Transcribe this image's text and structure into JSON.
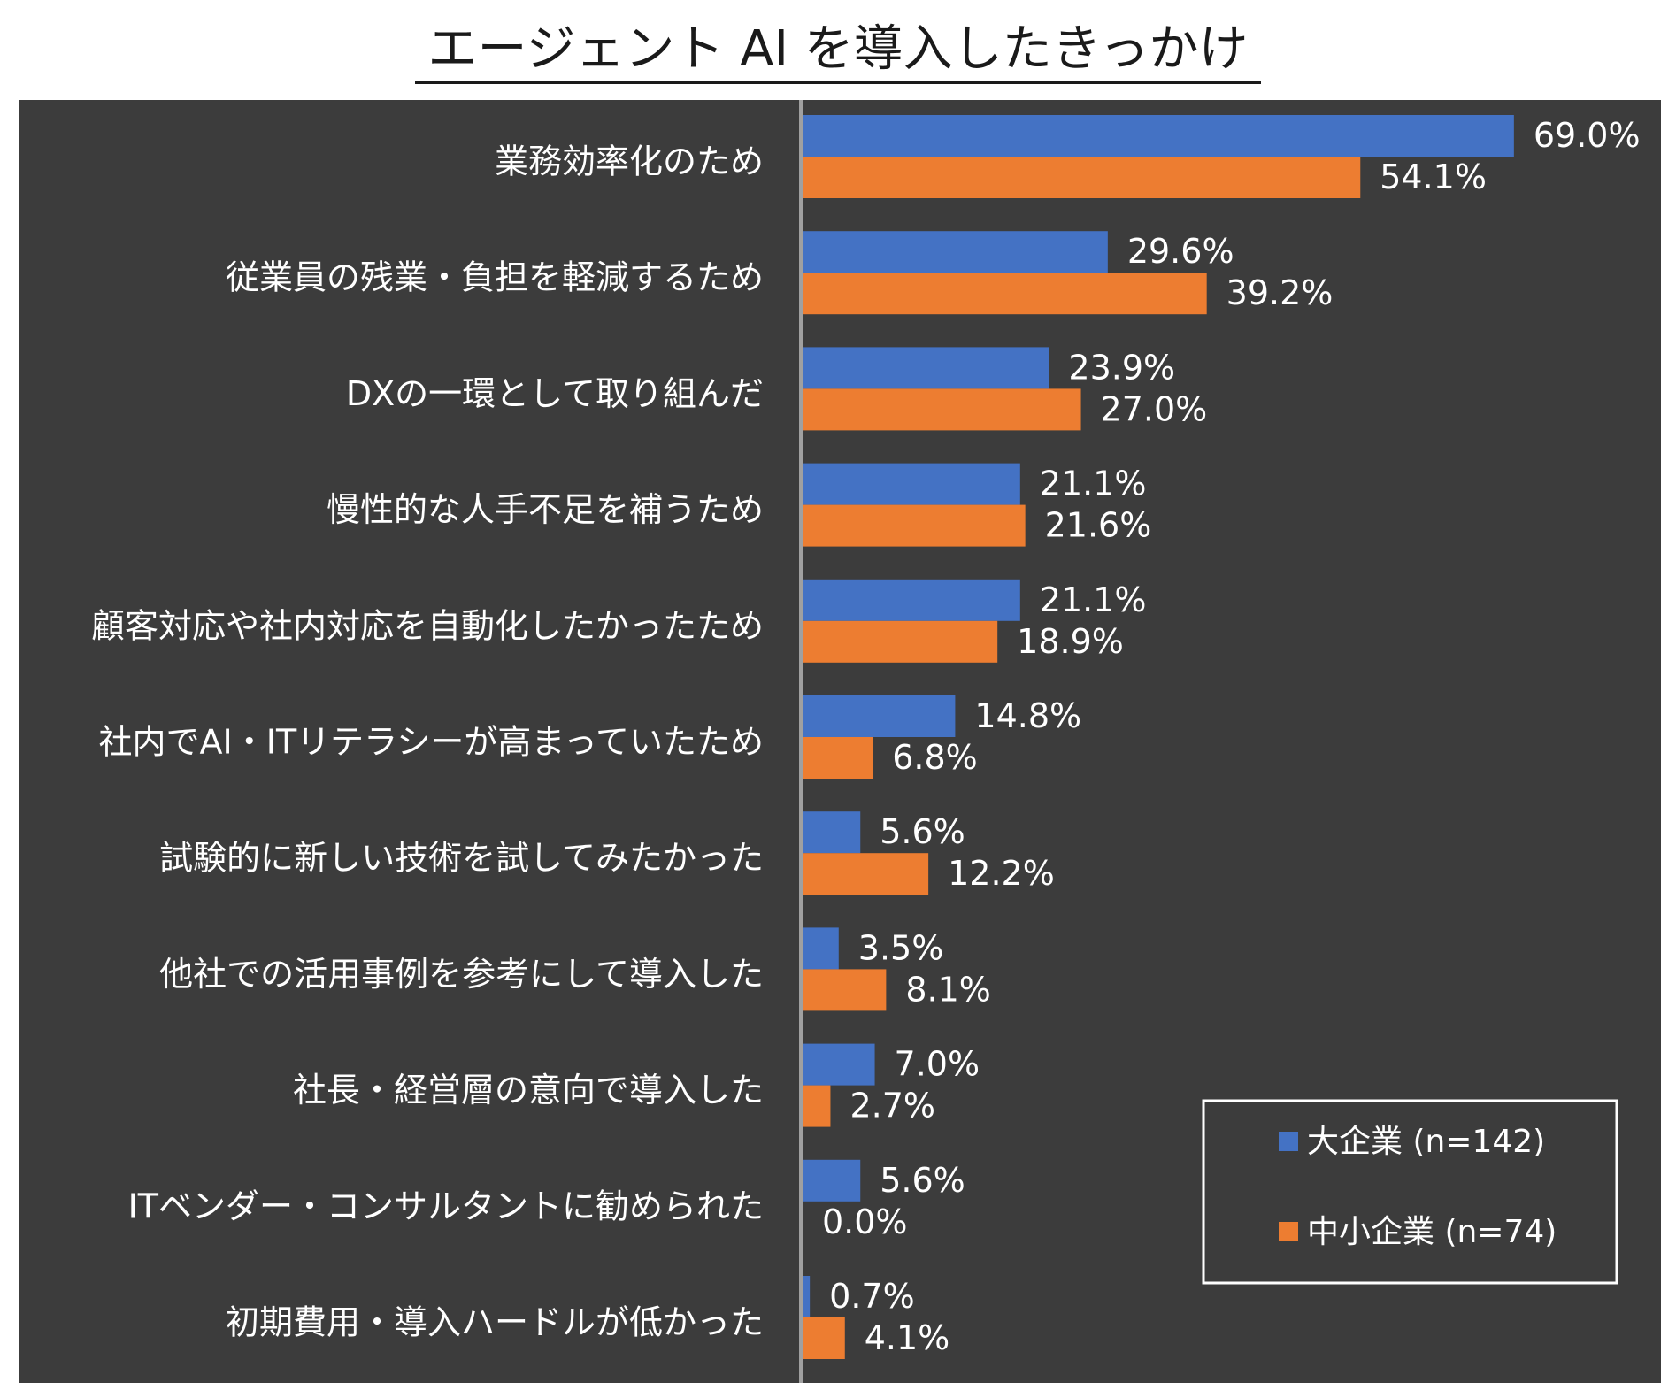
{
  "title": "エージェント AI を導入したきっかけ",
  "colors": {
    "background": "#3c3c3c",
    "large": "#4472c4",
    "small": "#ed7d31",
    "text": "#ffffff",
    "axis": "#a0a0a0"
  },
  "chart_data": {
    "type": "bar",
    "orientation": "horizontal",
    "title": "エージェント AI を導入したきっかけ",
    "xlim": [
      0,
      80
    ],
    "unit": "%",
    "categories": [
      "業務効率化のため",
      "従業員の残業・負担を軽減するため",
      "DXの一環として取り組んだ",
      "慢性的な人手不足を補うため",
      "顧客対応や社内対応を自動化したかったため",
      "社内でAI・ITリテラシーが高まっていたため",
      "試験的に新しい技術を試してみたかった",
      "他社での活用事例を参考にして導入した",
      "社長・経営層の意向で導入した",
      "ITベンダー・コンサルタントに勧められた",
      "初期費用・導入ハードルが低かった"
    ],
    "series": [
      {
        "name": "大企業 (n=142)",
        "values": [
          69.0,
          29.6,
          23.9,
          21.1,
          21.1,
          14.8,
          5.6,
          3.5,
          7.0,
          5.6,
          0.7
        ]
      },
      {
        "name": "中小企業 (n=74)",
        "values": [
          54.1,
          39.2,
          27.0,
          21.6,
          18.9,
          6.8,
          12.2,
          8.1,
          2.7,
          0.0,
          4.1
        ]
      }
    ],
    "legend_position": "bottom-right"
  }
}
